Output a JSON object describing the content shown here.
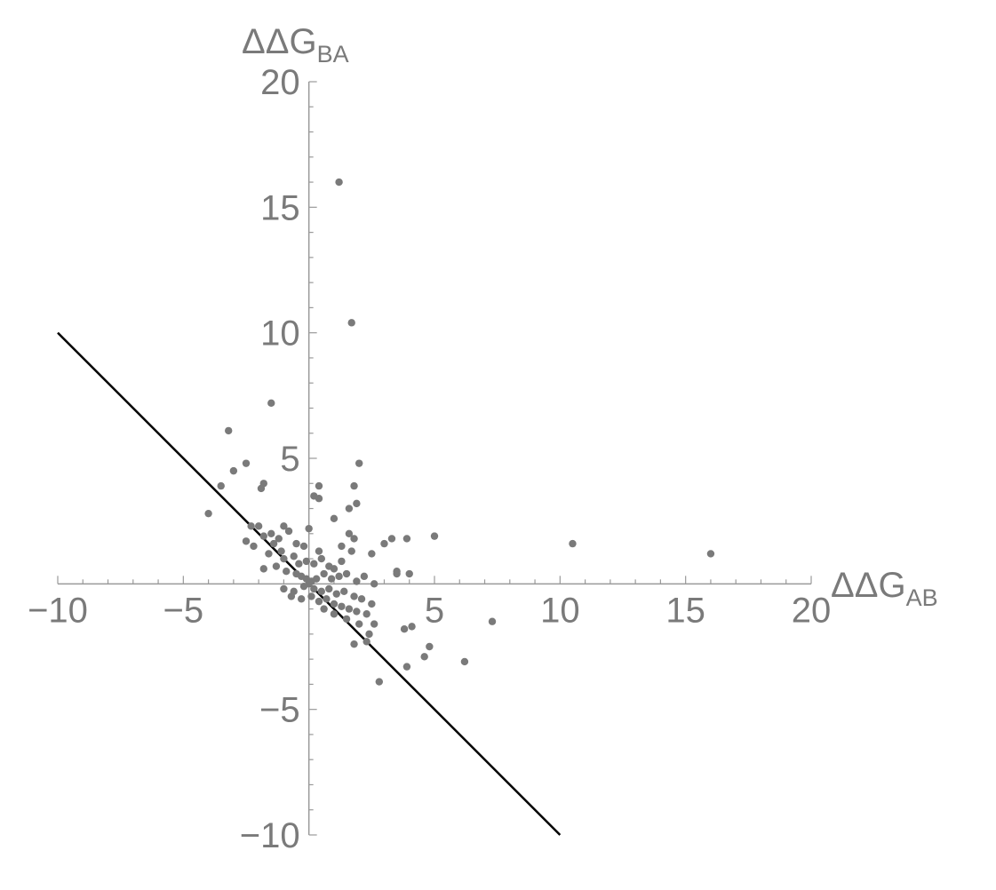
{
  "chart_data": {
    "type": "scatter",
    "title": "",
    "xlabel": {
      "main": "ΔΔG",
      "sub": "AB"
    },
    "ylabel": {
      "main": "ΔΔG",
      "sub": "BA"
    },
    "xlim": [
      -10,
      20
    ],
    "ylim": [
      -10,
      20
    ],
    "x_ticks": [
      -10,
      -5,
      5,
      10,
      15,
      20
    ],
    "x_tick_labels": [
      "−10",
      "−5",
      "5",
      "10",
      "15",
      "20"
    ],
    "y_ticks": [
      -10,
      -5,
      5,
      10,
      15,
      20
    ],
    "y_tick_labels": [
      "−10",
      "−5",
      "5",
      "10",
      "15",
      "20"
    ],
    "grid": false,
    "colors": {
      "points": "#7a7a7a",
      "line": "#000000",
      "axes": "#9a9a9a"
    },
    "reference_line": {
      "label": "",
      "x": [
        -10,
        10
      ],
      "y": [
        10,
        -10
      ]
    },
    "series": [
      {
        "name": "",
        "points": [
          [
            1.2,
            16.0
          ],
          [
            1.7,
            10.4
          ],
          [
            -1.5,
            7.2
          ],
          [
            -3.2,
            6.1
          ],
          [
            2.0,
            4.8
          ],
          [
            -3.0,
            4.5
          ],
          [
            -2.5,
            4.8
          ],
          [
            -3.5,
            3.9
          ],
          [
            -1.8,
            4.0
          ],
          [
            -1.9,
            3.8
          ],
          [
            0.4,
            3.9
          ],
          [
            0.2,
            3.5
          ],
          [
            0.4,
            3.4
          ],
          [
            1.8,
            3.9
          ],
          [
            1.9,
            3.2
          ],
          [
            1.6,
            3.0
          ],
          [
            -4.0,
            2.8
          ],
          [
            1.0,
            2.6
          ],
          [
            -2.3,
            2.3
          ],
          [
            -2.0,
            2.3
          ],
          [
            -1.5,
            2.0
          ],
          [
            -1.0,
            2.3
          ],
          [
            -1.8,
            1.9
          ],
          [
            -1.2,
            1.8
          ],
          [
            -0.8,
            2.1
          ],
          [
            0.0,
            2.2
          ],
          [
            1.6,
            2.0
          ],
          [
            1.8,
            1.8
          ],
          [
            3.3,
            1.8
          ],
          [
            3.9,
            1.8
          ],
          [
            5.0,
            1.9
          ],
          [
            10.5,
            1.6
          ],
          [
            16.0,
            1.2
          ],
          [
            -2.5,
            1.7
          ],
          [
            -2.2,
            1.5
          ],
          [
            -1.4,
            1.6
          ],
          [
            -1.1,
            1.3
          ],
          [
            -0.5,
            1.6
          ],
          [
            -0.2,
            1.5
          ],
          [
            0.4,
            1.3
          ],
          [
            1.3,
            1.5
          ],
          [
            1.7,
            1.3
          ],
          [
            2.5,
            1.2
          ],
          [
            3.0,
            1.6
          ],
          [
            3.5,
            0.5
          ],
          [
            3.5,
            0.4
          ],
          [
            4.0,
            0.4
          ],
          [
            2.6,
            0.0
          ],
          [
            -1.6,
            1.2
          ],
          [
            -1.0,
            1.0
          ],
          [
            -0.6,
            1.1
          ],
          [
            -0.4,
            0.8
          ],
          [
            -0.1,
            0.9
          ],
          [
            0.2,
            0.8
          ],
          [
            0.5,
            1.0
          ],
          [
            0.8,
            0.7
          ],
          [
            1.0,
            0.6
          ],
          [
            1.3,
            0.9
          ],
          [
            -1.8,
            0.6
          ],
          [
            -1.3,
            0.7
          ],
          [
            -0.9,
            0.5
          ],
          [
            -0.5,
            0.4
          ],
          [
            -0.3,
            0.3
          ],
          [
            -0.1,
            0.2
          ],
          [
            0.0,
            0.0
          ],
          [
            0.1,
            0.1
          ],
          [
            0.3,
            0.2
          ],
          [
            0.6,
            0.4
          ],
          [
            0.9,
            0.2
          ],
          [
            1.2,
            0.3
          ],
          [
            1.5,
            0.4
          ],
          [
            1.9,
            0.1
          ],
          [
            2.2,
            0.3
          ],
          [
            -1.0,
            -0.2
          ],
          [
            -0.6,
            -0.3
          ],
          [
            -0.2,
            -0.1
          ],
          [
            0.2,
            -0.2
          ],
          [
            0.5,
            -0.3
          ],
          [
            0.8,
            -0.2
          ],
          [
            1.1,
            -0.4
          ],
          [
            1.4,
            -0.3
          ],
          [
            1.8,
            -0.5
          ],
          [
            2.1,
            -0.6
          ],
          [
            2.5,
            -0.8
          ],
          [
            -0.7,
            -0.5
          ],
          [
            -0.3,
            -0.6
          ],
          [
            0.1,
            -0.5
          ],
          [
            0.4,
            -0.7
          ],
          [
            0.7,
            -0.6
          ],
          [
            1.0,
            -0.8
          ],
          [
            1.3,
            -0.9
          ],
          [
            1.6,
            -1.0
          ],
          [
            1.9,
            -1.1
          ],
          [
            2.3,
            -1.2
          ],
          [
            2.6,
            -1.6
          ],
          [
            0.6,
            -1.0
          ],
          [
            1.0,
            -1.2
          ],
          [
            1.5,
            -1.4
          ],
          [
            2.0,
            -1.6
          ],
          [
            2.4,
            -2.0
          ],
          [
            1.8,
            -2.4
          ],
          [
            2.3,
            -2.3
          ],
          [
            3.8,
            -1.8
          ],
          [
            4.1,
            -1.7
          ],
          [
            4.8,
            -2.5
          ],
          [
            4.6,
            -2.9
          ],
          [
            3.9,
            -3.3
          ],
          [
            6.2,
            -3.1
          ],
          [
            7.3,
            -1.5
          ],
          [
            2.8,
            -3.9
          ]
        ]
      }
    ]
  }
}
